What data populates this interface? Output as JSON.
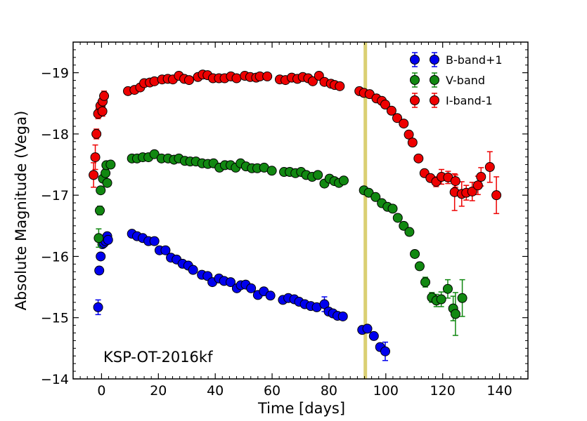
{
  "chart_data": {
    "type": "scatter",
    "title": "",
    "xlabel": "Time [days]",
    "ylabel": "Absolute Magnitude (Vega)",
    "xlim": [
      -10,
      150
    ],
    "ylim": [
      -14,
      -19.5
    ],
    "y_inverted": true,
    "x_ticks": [
      0,
      20,
      40,
      60,
      80,
      100,
      120,
      140
    ],
    "x_tick_labels": [
      "0",
      "20",
      "40",
      "60",
      "80",
      "100",
      "120",
      "140"
    ],
    "y_ticks": [
      -14,
      -15,
      -16,
      -17,
      -18,
      -19
    ],
    "y_tick_labels": [
      "−14",
      "−15",
      "−16",
      "−17",
      "−18",
      "−19"
    ],
    "annotation": "KSP-OT-2016kf",
    "vertical_band": {
      "x": 92.8,
      "color": "#d4c85a"
    },
    "legend_position": "top-right",
    "series": [
      {
        "name": "B-band+1",
        "color": "#0000ee",
        "points": [
          [
            -1.2,
            -15.17,
            0.12
          ],
          [
            -0.8,
            -15.77,
            0.06
          ],
          [
            -0.3,
            -16.0,
            0.05
          ],
          [
            0.3,
            -16.2,
            0.05
          ],
          [
            0.8,
            -16.22,
            0.06
          ],
          [
            1.4,
            -16.25,
            0.05
          ],
          [
            2.0,
            -16.33,
            0.05
          ],
          [
            2.3,
            -16.27,
            0.05
          ],
          [
            10.7,
            -16.37,
            0.04
          ],
          [
            12.5,
            -16.33,
            0.04
          ],
          [
            14.5,
            -16.3,
            0.04
          ],
          [
            16.5,
            -16.25,
            0.04
          ],
          [
            18.6,
            -16.25,
            0.04
          ],
          [
            20.4,
            -16.1,
            0.04
          ],
          [
            22.5,
            -16.1,
            0.04
          ],
          [
            24.4,
            -15.98,
            0.04
          ],
          [
            26.4,
            -15.95,
            0.04
          ],
          [
            28.5,
            -15.88,
            0.04
          ],
          [
            30.5,
            -15.85,
            0.04
          ],
          [
            32.2,
            -15.78,
            0.04
          ],
          [
            35.3,
            -15.7,
            0.04
          ],
          [
            37.3,
            -15.68,
            0.04
          ],
          [
            39.0,
            -15.58,
            0.04
          ],
          [
            41.3,
            -15.64,
            0.04
          ],
          [
            43.1,
            -15.6,
            0.04
          ],
          [
            45.4,
            -15.58,
            0.04
          ],
          [
            47.6,
            -15.48,
            0.05
          ],
          [
            49.0,
            -15.53,
            0.04
          ],
          [
            50.7,
            -15.54,
            0.04
          ],
          [
            52.6,
            -15.48,
            0.04
          ],
          [
            55.0,
            -15.37,
            0.04
          ],
          [
            57.1,
            -15.43,
            0.04
          ],
          [
            59.4,
            -15.36,
            0.04
          ],
          [
            63.8,
            -15.29,
            0.04
          ],
          [
            65.7,
            -15.32,
            0.04
          ],
          [
            67.8,
            -15.3,
            0.04
          ],
          [
            69.5,
            -15.26,
            0.04
          ],
          [
            71.5,
            -15.22,
            0.04
          ],
          [
            73.6,
            -15.19,
            0.05
          ],
          [
            75.7,
            -15.17,
            0.05
          ],
          [
            78.4,
            -15.22,
            0.12
          ],
          [
            79.9,
            -15.1,
            0.05
          ],
          [
            81.4,
            -15.07,
            0.05
          ],
          [
            83.0,
            -15.03,
            0.04
          ],
          [
            84.9,
            -15.02,
            0.04
          ],
          [
            91.7,
            -14.8,
            0.04
          ],
          [
            93.5,
            -14.82,
            0.04
          ],
          [
            95.8,
            -14.7,
            0.05
          ],
          [
            98.0,
            -14.52,
            0.06
          ],
          [
            99.8,
            -14.45,
            0.15
          ]
        ]
      },
      {
        "name": "V-band",
        "color": "#118811",
        "points": [
          [
            -1.0,
            -16.3,
            0.15
          ],
          [
            -0.6,
            -16.75,
            0.07
          ],
          [
            -0.3,
            -17.08,
            0.05
          ],
          [
            0.5,
            -17.27,
            0.05
          ],
          [
            1.4,
            -17.36,
            0.05
          ],
          [
            1.7,
            -17.49,
            0.05
          ],
          [
            2.0,
            -17.2,
            0.05
          ],
          [
            3.2,
            -17.5,
            0.05
          ],
          [
            10.7,
            -17.6,
            0.04
          ],
          [
            12.5,
            -17.6,
            0.04
          ],
          [
            14.5,
            -17.62,
            0.04
          ],
          [
            16.5,
            -17.62,
            0.04
          ],
          [
            18.6,
            -17.67,
            0.04
          ],
          [
            21.1,
            -17.6,
            0.04
          ],
          [
            23.4,
            -17.6,
            0.04
          ],
          [
            25.5,
            -17.58,
            0.04
          ],
          [
            27.2,
            -17.6,
            0.04
          ],
          [
            29.3,
            -17.56,
            0.04
          ],
          [
            31.2,
            -17.55,
            0.04
          ],
          [
            33.2,
            -17.55,
            0.04
          ],
          [
            35.4,
            -17.52,
            0.04
          ],
          [
            37.4,
            -17.51,
            0.04
          ],
          [
            39.4,
            -17.52,
            0.04
          ],
          [
            41.5,
            -17.45,
            0.04
          ],
          [
            43.4,
            -17.49,
            0.04
          ],
          [
            45.4,
            -17.49,
            0.04
          ],
          [
            47.2,
            -17.45,
            0.04
          ],
          [
            48.9,
            -17.52,
            0.04
          ],
          [
            50.8,
            -17.47,
            0.04
          ],
          [
            52.9,
            -17.44,
            0.04
          ],
          [
            54.8,
            -17.44,
            0.04
          ],
          [
            57.2,
            -17.45,
            0.04
          ],
          [
            59.9,
            -17.4,
            0.04
          ],
          [
            64.2,
            -17.38,
            0.04
          ],
          [
            66.2,
            -17.38,
            0.04
          ],
          [
            68.2,
            -17.36,
            0.04
          ],
          [
            70.2,
            -17.38,
            0.04
          ],
          [
            72.0,
            -17.33,
            0.04
          ],
          [
            74.1,
            -17.3,
            0.04
          ],
          [
            76.1,
            -17.33,
            0.04
          ],
          [
            78.4,
            -17.19,
            0.06
          ],
          [
            80.2,
            -17.27,
            0.04
          ],
          [
            81.9,
            -17.23,
            0.04
          ],
          [
            83.5,
            -17.2,
            0.05
          ],
          [
            85.2,
            -17.24,
            0.04
          ],
          [
            92.3,
            -17.08,
            0.04
          ],
          [
            94.0,
            -17.04,
            0.04
          ],
          [
            96.4,
            -16.97,
            0.04
          ],
          [
            98.6,
            -16.87,
            0.04
          ],
          [
            100.6,
            -16.81,
            0.04
          ],
          [
            102.4,
            -16.78,
            0.04
          ],
          [
            104.2,
            -16.63,
            0.06
          ],
          [
            106.3,
            -16.5,
            0.06
          ],
          [
            108.3,
            -16.4,
            0.06
          ],
          [
            110.2,
            -16.04,
            0.06
          ],
          [
            111.9,
            -15.84,
            0.06
          ],
          [
            113.9,
            -15.58,
            0.08
          ],
          [
            116.2,
            -15.33,
            0.08
          ],
          [
            117.8,
            -15.28,
            0.1
          ],
          [
            119.5,
            -15.3,
            0.12
          ],
          [
            121.8,
            -15.47,
            0.15
          ],
          [
            123.7,
            -15.15,
            0.2
          ],
          [
            124.5,
            -15.06,
            0.35
          ],
          [
            126.9,
            -15.32,
            0.3
          ]
        ]
      },
      {
        "name": "I-band-1",
        "color": "#ee0000",
        "points": [
          [
            -2.8,
            -17.33,
            0.2
          ],
          [
            -2.2,
            -17.62,
            0.2
          ],
          [
            -1.8,
            -18.0,
            0.08
          ],
          [
            -1.2,
            -18.33,
            0.08
          ],
          [
            -0.4,
            -18.46,
            0.08
          ],
          [
            0.4,
            -18.53,
            0.08
          ],
          [
            0.9,
            -18.62,
            0.08
          ],
          [
            0.3,
            -18.37,
            0.08
          ],
          [
            9.3,
            -18.7,
            0.04
          ],
          [
            11.6,
            -18.72,
            0.04
          ],
          [
            13.6,
            -18.76,
            0.04
          ],
          [
            15.0,
            -18.83,
            0.04
          ],
          [
            17.0,
            -18.84,
            0.04
          ],
          [
            18.6,
            -18.86,
            0.04
          ],
          [
            21.3,
            -18.89,
            0.04
          ],
          [
            23.3,
            -18.9,
            0.04
          ],
          [
            25.1,
            -18.89,
            0.04
          ],
          [
            27.2,
            -18.95,
            0.04
          ],
          [
            29.1,
            -18.9,
            0.04
          ],
          [
            30.8,
            -18.88,
            0.04
          ],
          [
            33.9,
            -18.93,
            0.04
          ],
          [
            35.6,
            -18.97,
            0.04
          ],
          [
            37.3,
            -18.96,
            0.04
          ],
          [
            39.2,
            -18.91,
            0.04
          ],
          [
            41.3,
            -18.91,
            0.04
          ],
          [
            43.3,
            -18.91,
            0.04
          ],
          [
            45.5,
            -18.94,
            0.04
          ],
          [
            47.5,
            -18.91,
            0.04
          ],
          [
            50.4,
            -18.95,
            0.04
          ],
          [
            52.3,
            -18.93,
            0.04
          ],
          [
            54.4,
            -18.92,
            0.04
          ],
          [
            55.7,
            -18.94,
            0.04
          ],
          [
            58.3,
            -18.94,
            0.04
          ],
          [
            62.7,
            -18.89,
            0.04
          ],
          [
            64.7,
            -18.88,
            0.04
          ],
          [
            66.9,
            -18.92,
            0.04
          ],
          [
            68.9,
            -18.9,
            0.04
          ],
          [
            70.8,
            -18.93,
            0.04
          ],
          [
            72.7,
            -18.91,
            0.04
          ],
          [
            74.3,
            -18.86,
            0.04
          ],
          [
            76.5,
            -18.95,
            0.04
          ],
          [
            78.4,
            -18.85,
            0.04
          ],
          [
            80.7,
            -18.82,
            0.04
          ],
          [
            82.0,
            -18.8,
            0.04
          ],
          [
            83.8,
            -18.78,
            0.04
          ],
          [
            90.7,
            -18.7,
            0.04
          ],
          [
            92.3,
            -18.67,
            0.04
          ],
          [
            94.3,
            -18.65,
            0.04
          ],
          [
            96.7,
            -18.58,
            0.04
          ],
          [
            98.6,
            -18.54,
            0.04
          ],
          [
            99.8,
            -18.48,
            0.04
          ],
          [
            102.0,
            -18.38,
            0.04
          ],
          [
            104.0,
            -18.26,
            0.04
          ],
          [
            106.3,
            -18.17,
            0.04
          ],
          [
            108.1,
            -17.99,
            0.04
          ],
          [
            109.4,
            -17.86,
            0.04
          ],
          [
            111.5,
            -17.6,
            0.04
          ],
          [
            113.6,
            -17.36,
            0.04
          ],
          [
            115.7,
            -17.28,
            0.05
          ],
          [
            117.7,
            -17.22,
            0.08
          ],
          [
            119.6,
            -17.3,
            0.12
          ],
          [
            121.9,
            -17.29,
            0.1
          ],
          [
            124.2,
            -17.05,
            0.3
          ],
          [
            124.5,
            -17.23,
            0.1
          ],
          [
            126.7,
            -17.02,
            0.2
          ],
          [
            128.3,
            -17.04,
            0.12
          ],
          [
            130.4,
            -17.06,
            0.15
          ],
          [
            132.4,
            -17.16,
            0.15
          ],
          [
            133.5,
            -17.3,
            0.15
          ],
          [
            136.6,
            -17.46,
            0.25
          ],
          [
            138.9,
            -17.0,
            0.3
          ]
        ]
      }
    ]
  }
}
